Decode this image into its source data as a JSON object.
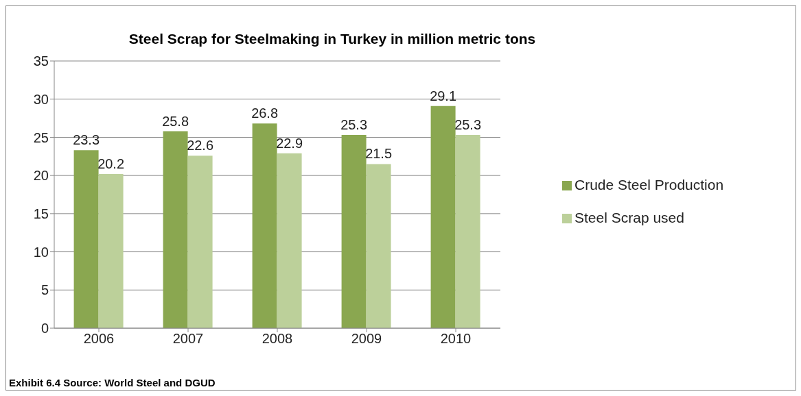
{
  "chart_data": {
    "type": "bar",
    "title": "Steel Scrap for Steelmaking in Turkey in million metric tons",
    "categories": [
      "2006",
      "2007",
      "2008",
      "2009",
      "2010"
    ],
    "series": [
      {
        "name": "Crude Steel Production",
        "color": "#8aa750",
        "values": [
          23.3,
          25.8,
          26.8,
          25.3,
          29.1
        ]
      },
      {
        "name": "Steel Scrap used",
        "color": "#bcd09a",
        "values": [
          20.2,
          22.6,
          22.9,
          21.5,
          25.3
        ]
      }
    ],
    "ylim": [
      0,
      35
    ],
    "yticks": [
      0,
      5,
      10,
      15,
      20,
      25,
      30,
      35
    ],
    "grid": "y",
    "legend": "right",
    "data_labels": true,
    "annotations": [
      "Exhibit 6.4 Source: World Steel and DGUD"
    ]
  }
}
